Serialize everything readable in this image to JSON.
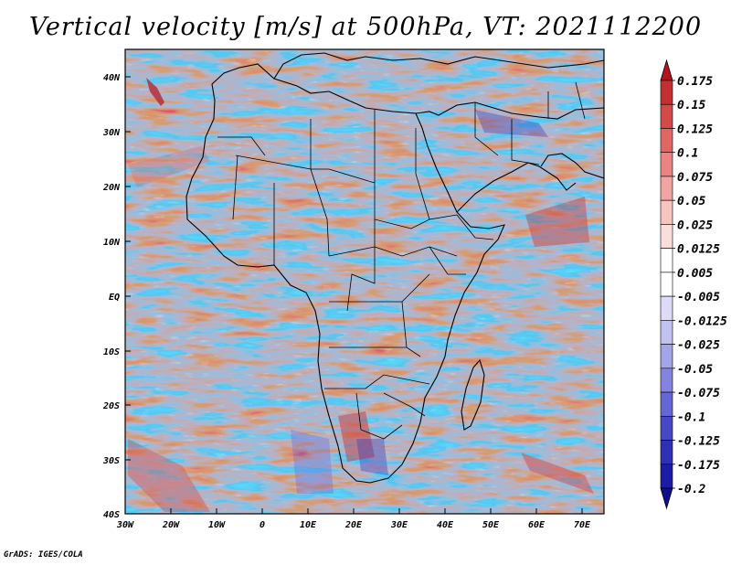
{
  "title": "Vertical velocity [m/s] at 500hPa, VT: 2021112200",
  "credit": "GrADS: IGES/COLA",
  "lat_labels": [
    "40N",
    "30N",
    "20N",
    "10N",
    "EQ",
    "10S",
    "20S",
    "30S",
    "40S"
  ],
  "lon_labels": [
    "30W",
    "20W",
    "10W",
    "0",
    "10E",
    "20E",
    "30E",
    "40E",
    "50E",
    "60E",
    "70E"
  ],
  "colorbar": {
    "levels": [
      "0.175",
      "0.15",
      "0.125",
      "0.1",
      "0.075",
      "0.05",
      "0.025",
      "0.0125",
      "0.005",
      "-0.005",
      "-0.0125",
      "-0.025",
      "-0.05",
      "-0.075",
      "-0.1",
      "-0.125",
      "-0.175",
      "-0.2"
    ],
    "colors": [
      "#b2161e",
      "#c42f32",
      "#d44a48",
      "#e06662",
      "#ea8480",
      "#f2a4a0",
      "#f8c4c0",
      "#fbdedc",
      "#ffffff",
      "#ffffff",
      "#dcdcf8",
      "#c2c2f2",
      "#a4a4ea",
      "#8484e0",
      "#6666d4",
      "#4848c6",
      "#3030b6",
      "#1c1ca6",
      "#0e0e8e"
    ]
  }
}
